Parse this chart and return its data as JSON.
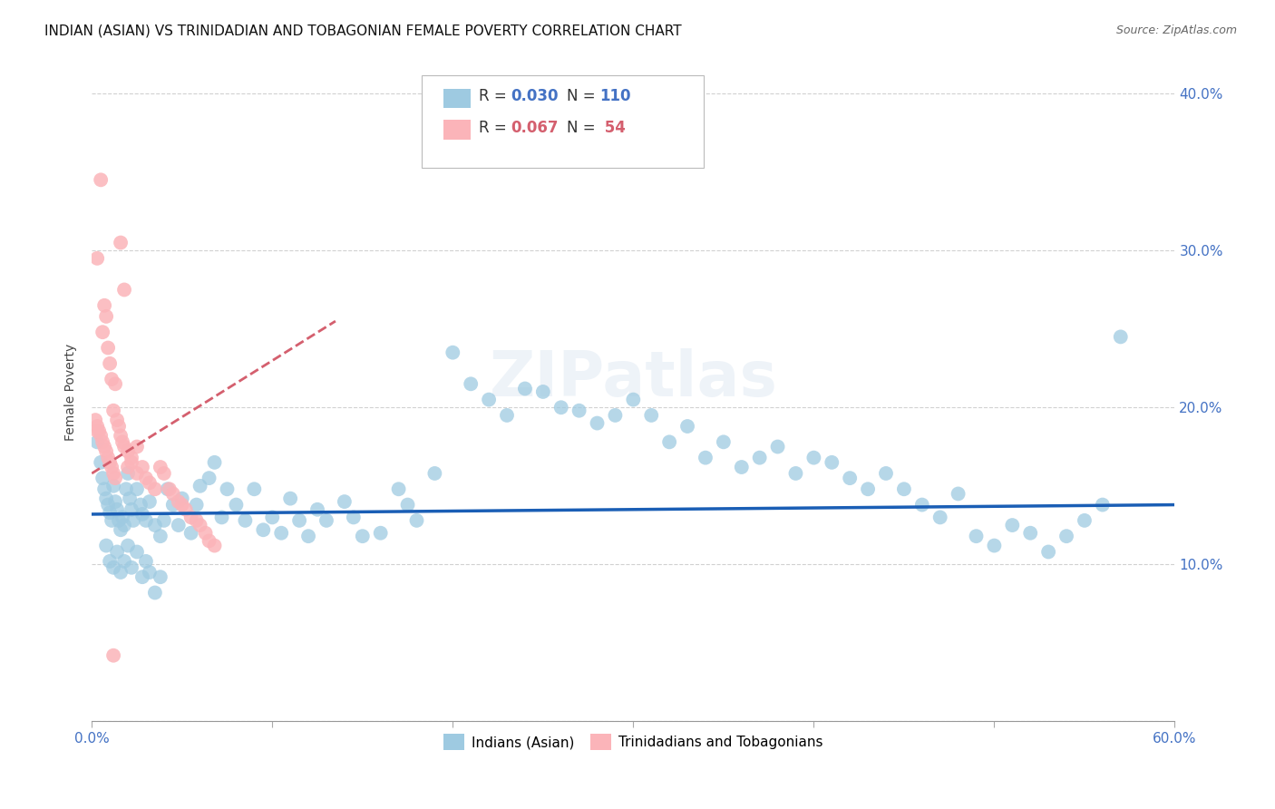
{
  "title": "INDIAN (ASIAN) VS TRINIDADIAN AND TOBAGONIAN FEMALE POVERTY CORRELATION CHART",
  "source": "Source: ZipAtlas.com",
  "ylabel": "Female Poverty",
  "xlim": [
    0.0,
    0.6
  ],
  "ylim": [
    0.0,
    0.42
  ],
  "watermark": "ZIPatlas",
  "legend_r1": "R = 0.030",
  "legend_n1": "N = 110",
  "legend_r2": "R = 0.067",
  "legend_n2": "N =  54",
  "color_blue": "#9ecae1",
  "color_pink": "#fbb4b9",
  "color_blue_line": "#1a5eb5",
  "color_pink_line": "#d45f6e",
  "color_axis_text": "#4472c4",
  "color_grid": "#cccccc",
  "title_fontsize": 11,
  "source_fontsize": 9,
  "blue_trend_y0": 0.132,
  "blue_trend_y1": 0.138,
  "pink_trend_y0": 0.158,
  "pink_trend_y1": 0.255,
  "blue_x": [
    0.003,
    0.005,
    0.006,
    0.007,
    0.008,
    0.009,
    0.01,
    0.011,
    0.012,
    0.013,
    0.014,
    0.015,
    0.016,
    0.017,
    0.018,
    0.019,
    0.02,
    0.021,
    0.022,
    0.023,
    0.025,
    0.027,
    0.028,
    0.03,
    0.032,
    0.035,
    0.038,
    0.04,
    0.042,
    0.045,
    0.048,
    0.05,
    0.055,
    0.058,
    0.06,
    0.065,
    0.068,
    0.072,
    0.075,
    0.08,
    0.085,
    0.09,
    0.095,
    0.1,
    0.105,
    0.11,
    0.115,
    0.12,
    0.125,
    0.13,
    0.14,
    0.145,
    0.15,
    0.16,
    0.17,
    0.175,
    0.18,
    0.19,
    0.2,
    0.21,
    0.22,
    0.23,
    0.24,
    0.25,
    0.26,
    0.27,
    0.28,
    0.29,
    0.3,
    0.31,
    0.32,
    0.33,
    0.34,
    0.35,
    0.36,
    0.37,
    0.38,
    0.39,
    0.4,
    0.41,
    0.42,
    0.43,
    0.44,
    0.45,
    0.46,
    0.47,
    0.48,
    0.49,
    0.5,
    0.51,
    0.52,
    0.53,
    0.54,
    0.55,
    0.56,
    0.57,
    0.008,
    0.01,
    0.012,
    0.014,
    0.016,
    0.018,
    0.02,
    0.022,
    0.025,
    0.028,
    0.03,
    0.032,
    0.035,
    0.038
  ],
  "blue_y": [
    0.178,
    0.165,
    0.155,
    0.148,
    0.142,
    0.138,
    0.133,
    0.128,
    0.15,
    0.14,
    0.135,
    0.128,
    0.122,
    0.13,
    0.125,
    0.148,
    0.158,
    0.142,
    0.135,
    0.128,
    0.148,
    0.138,
    0.132,
    0.128,
    0.14,
    0.125,
    0.118,
    0.128,
    0.148,
    0.138,
    0.125,
    0.142,
    0.12,
    0.138,
    0.15,
    0.155,
    0.165,
    0.13,
    0.148,
    0.138,
    0.128,
    0.148,
    0.122,
    0.13,
    0.12,
    0.142,
    0.128,
    0.118,
    0.135,
    0.128,
    0.14,
    0.13,
    0.118,
    0.12,
    0.148,
    0.138,
    0.128,
    0.158,
    0.235,
    0.215,
    0.205,
    0.195,
    0.212,
    0.21,
    0.2,
    0.198,
    0.19,
    0.195,
    0.205,
    0.195,
    0.178,
    0.188,
    0.168,
    0.178,
    0.162,
    0.168,
    0.175,
    0.158,
    0.168,
    0.165,
    0.155,
    0.148,
    0.158,
    0.148,
    0.138,
    0.13,
    0.145,
    0.118,
    0.112,
    0.125,
    0.12,
    0.108,
    0.118,
    0.128,
    0.138,
    0.245,
    0.112,
    0.102,
    0.098,
    0.108,
    0.095,
    0.102,
    0.112,
    0.098,
    0.108,
    0.092,
    0.102,
    0.095,
    0.082,
    0.092
  ],
  "pink_x": [
    0.002,
    0.003,
    0.003,
    0.004,
    0.005,
    0.005,
    0.006,
    0.006,
    0.007,
    0.007,
    0.008,
    0.008,
    0.009,
    0.009,
    0.01,
    0.01,
    0.011,
    0.011,
    0.012,
    0.012,
    0.013,
    0.013,
    0.014,
    0.015,
    0.016,
    0.016,
    0.017,
    0.018,
    0.018,
    0.02,
    0.02,
    0.022,
    0.022,
    0.025,
    0.025,
    0.028,
    0.03,
    0.032,
    0.035,
    0.038,
    0.04,
    0.043,
    0.045,
    0.048,
    0.05,
    0.052,
    0.055,
    0.058,
    0.06,
    0.063,
    0.065,
    0.068,
    0.003,
    0.012
  ],
  "pink_y": [
    0.192,
    0.188,
    0.295,
    0.185,
    0.182,
    0.345,
    0.178,
    0.248,
    0.175,
    0.265,
    0.172,
    0.258,
    0.168,
    0.238,
    0.165,
    0.228,
    0.162,
    0.218,
    0.158,
    0.198,
    0.155,
    0.215,
    0.192,
    0.188,
    0.182,
    0.305,
    0.178,
    0.175,
    0.275,
    0.172,
    0.162,
    0.165,
    0.168,
    0.158,
    0.175,
    0.162,
    0.155,
    0.152,
    0.148,
    0.162,
    0.158,
    0.148,
    0.145,
    0.14,
    0.138,
    0.135,
    0.13,
    0.128,
    0.125,
    0.12,
    0.115,
    0.112,
    0.185,
    0.042
  ]
}
